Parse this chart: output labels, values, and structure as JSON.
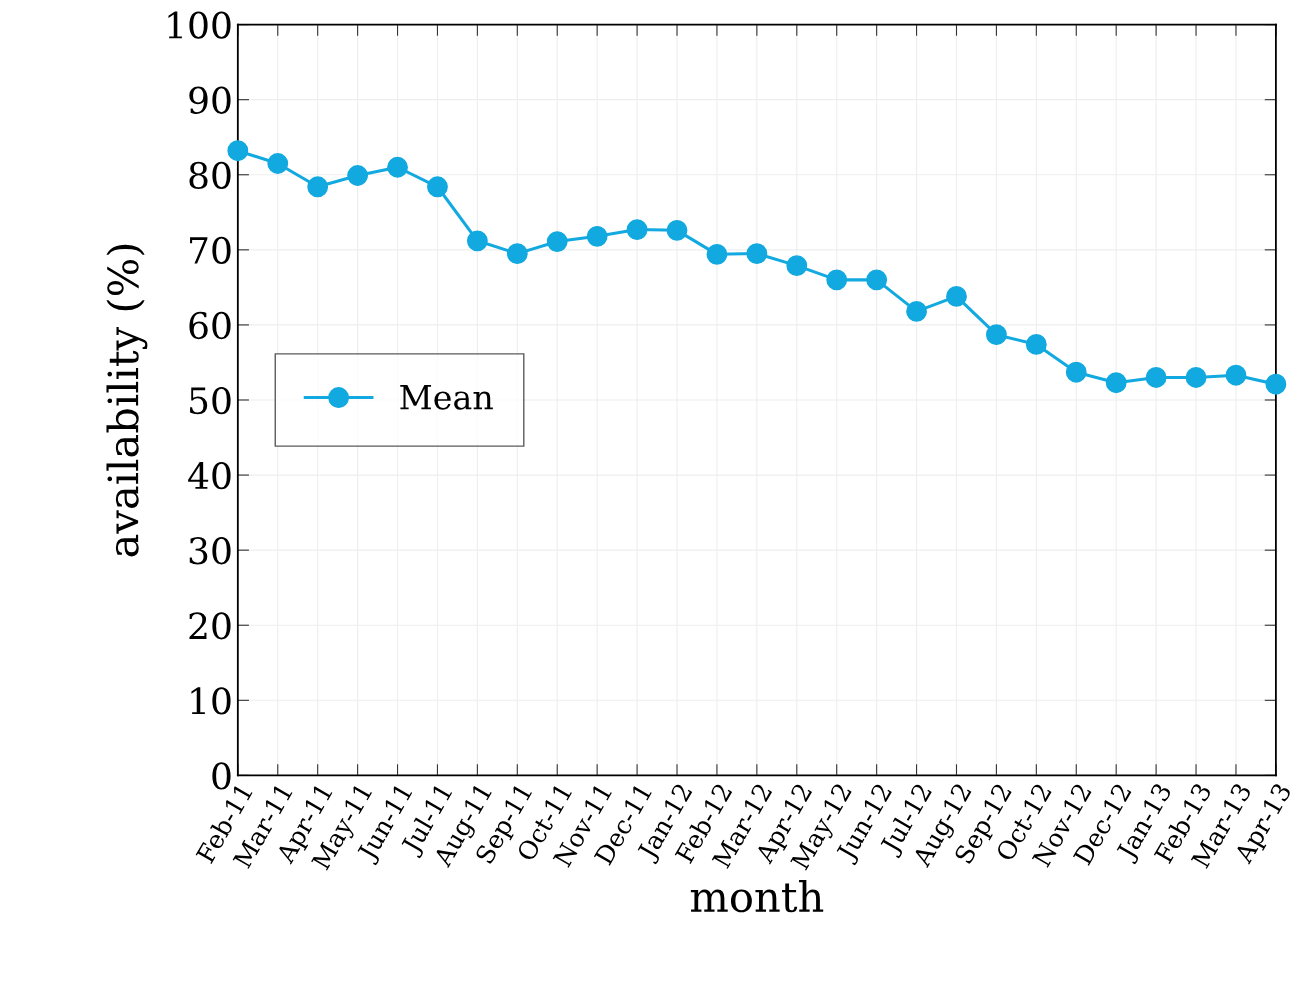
{
  "chart_data": {
    "type": "line",
    "xlabel": "month",
    "ylabel": "availability (%)",
    "categories": [
      "Feb-11",
      "Mar-11",
      "Apr-11",
      "May-11",
      "Jun-11",
      "Jul-11",
      "Aug-11",
      "Sep-11",
      "Oct-11",
      "Nov-11",
      "Dec-11",
      "Jan-12",
      "Feb-12",
      "Mar-12",
      "Apr-12",
      "May-12",
      "Jun-12",
      "Jul-12",
      "Aug-12",
      "Sep-12",
      "Oct-12",
      "Nov-12",
      "Dec-12",
      "Jan-13",
      "Feb-13",
      "Mar-13",
      "Apr-13"
    ],
    "series": [
      {
        "name": "Mean",
        "color": "#12a9e0",
        "values": [
          83.2,
          81.5,
          78.4,
          79.9,
          81.0,
          78.4,
          71.2,
          69.5,
          71.1,
          71.8,
          72.7,
          72.6,
          69.4,
          69.5,
          67.9,
          66.0,
          66.0,
          61.8,
          63.8,
          58.7,
          57.4,
          53.7,
          52.3,
          53.0,
          53.0,
          53.3,
          52.1
        ]
      }
    ],
    "ylim": [
      0,
      100
    ],
    "yticks": [
      0,
      10,
      20,
      30,
      40,
      50,
      60,
      70,
      80,
      90,
      100
    ],
    "grid": true,
    "legend": "left",
    "marker": "circle",
    "line_style": "solid"
  }
}
